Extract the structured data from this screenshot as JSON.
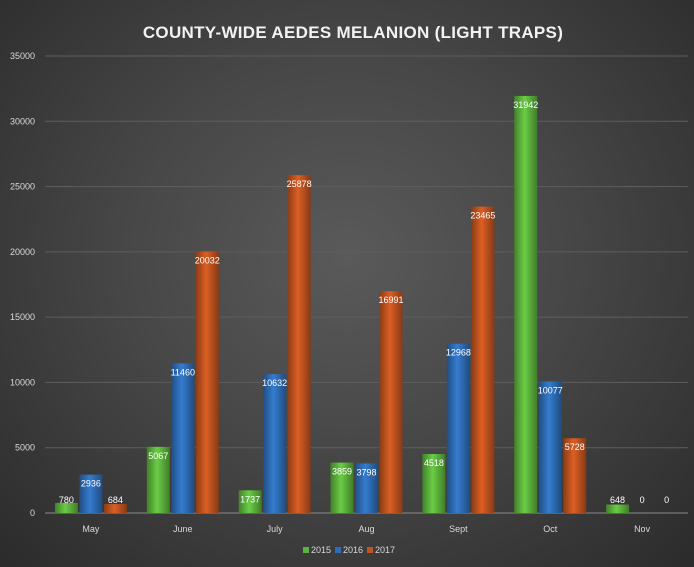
{
  "chart_data": {
    "type": "bar",
    "title": "COUNTY-WIDE AEDES MELANION (LIGHT TRAPS)",
    "xlabel": "",
    "ylabel": "",
    "categories": [
      "May",
      "June",
      "July",
      "Aug",
      "Sept",
      "Oct",
      "Nov"
    ],
    "series": [
      {
        "name": "2015",
        "color": "#5cb23c",
        "values": [
          780,
          5067,
          1737,
          3859,
          4518,
          31942,
          648
        ]
      },
      {
        "name": "2016",
        "color": "#2e6cb5",
        "values": [
          2936,
          11460,
          10632,
          3798,
          12968,
          10077,
          0
        ]
      },
      {
        "name": "2017",
        "color": "#c0531f",
        "values": [
          684,
          20032,
          25878,
          16991,
          23465,
          5728,
          0
        ]
      }
    ],
    "ylim": [
      0,
      35000
    ],
    "yticks": [
      0,
      5000,
      10000,
      15000,
      20000,
      25000,
      30000,
      35000
    ],
    "grid": true,
    "legend": "bottom-center",
    "data_labels": true
  }
}
